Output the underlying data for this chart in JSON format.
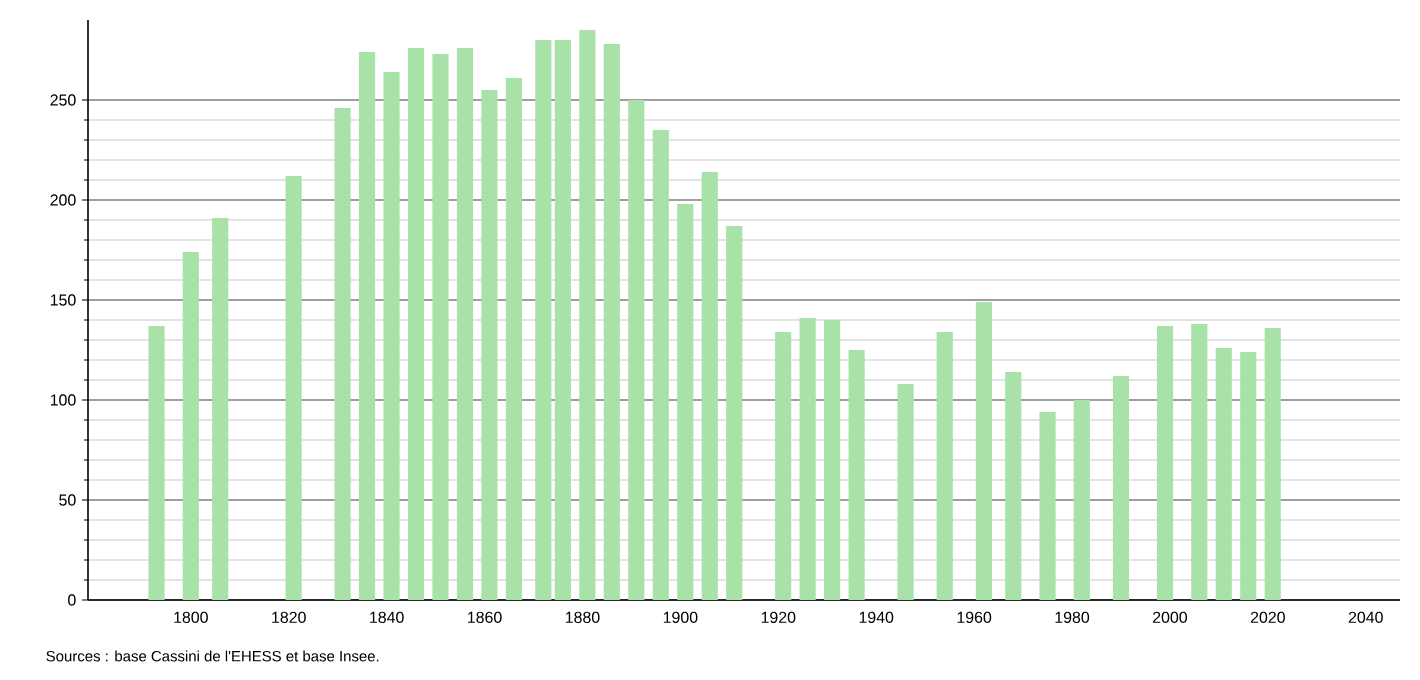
{
  "chart_data": {
    "type": "bar",
    "color": "#a8e2a8",
    "x": [
      1793,
      1800,
      1806,
      1821,
      1831,
      1836,
      1841,
      1846,
      1851,
      1856,
      1861,
      1866,
      1872,
      1876,
      1881,
      1886,
      1891,
      1896,
      1901,
      1906,
      1911,
      1921,
      1926,
      1931,
      1936,
      1946,
      1954,
      1962,
      1968,
      1975,
      1982,
      1990,
      1999,
      2006,
      2011,
      2016,
      2021
    ],
    "values": [
      137,
      174,
      191,
      212,
      246,
      274,
      264,
      276,
      273,
      276,
      255,
      261,
      280,
      280,
      285,
      278,
      250,
      235,
      198,
      214,
      187,
      134,
      141,
      140,
      125,
      108,
      134,
      149,
      114,
      94,
      100,
      112,
      137,
      138,
      126,
      124,
      136
    ],
    "xlim": [
      1779,
      2047
    ],
    "xticks": [
      1800,
      1820,
      1840,
      1860,
      1880,
      1900,
      1920,
      1940,
      1960,
      1980,
      2000,
      2020,
      2040
    ],
    "ylim": [
      0,
      290
    ],
    "yticks": [
      0,
      50,
      100,
      150,
      200,
      250
    ],
    "grid": "y",
    "annotations": [
      "Sources : base Cassini de l'EHESS et base Insee."
    ]
  }
}
